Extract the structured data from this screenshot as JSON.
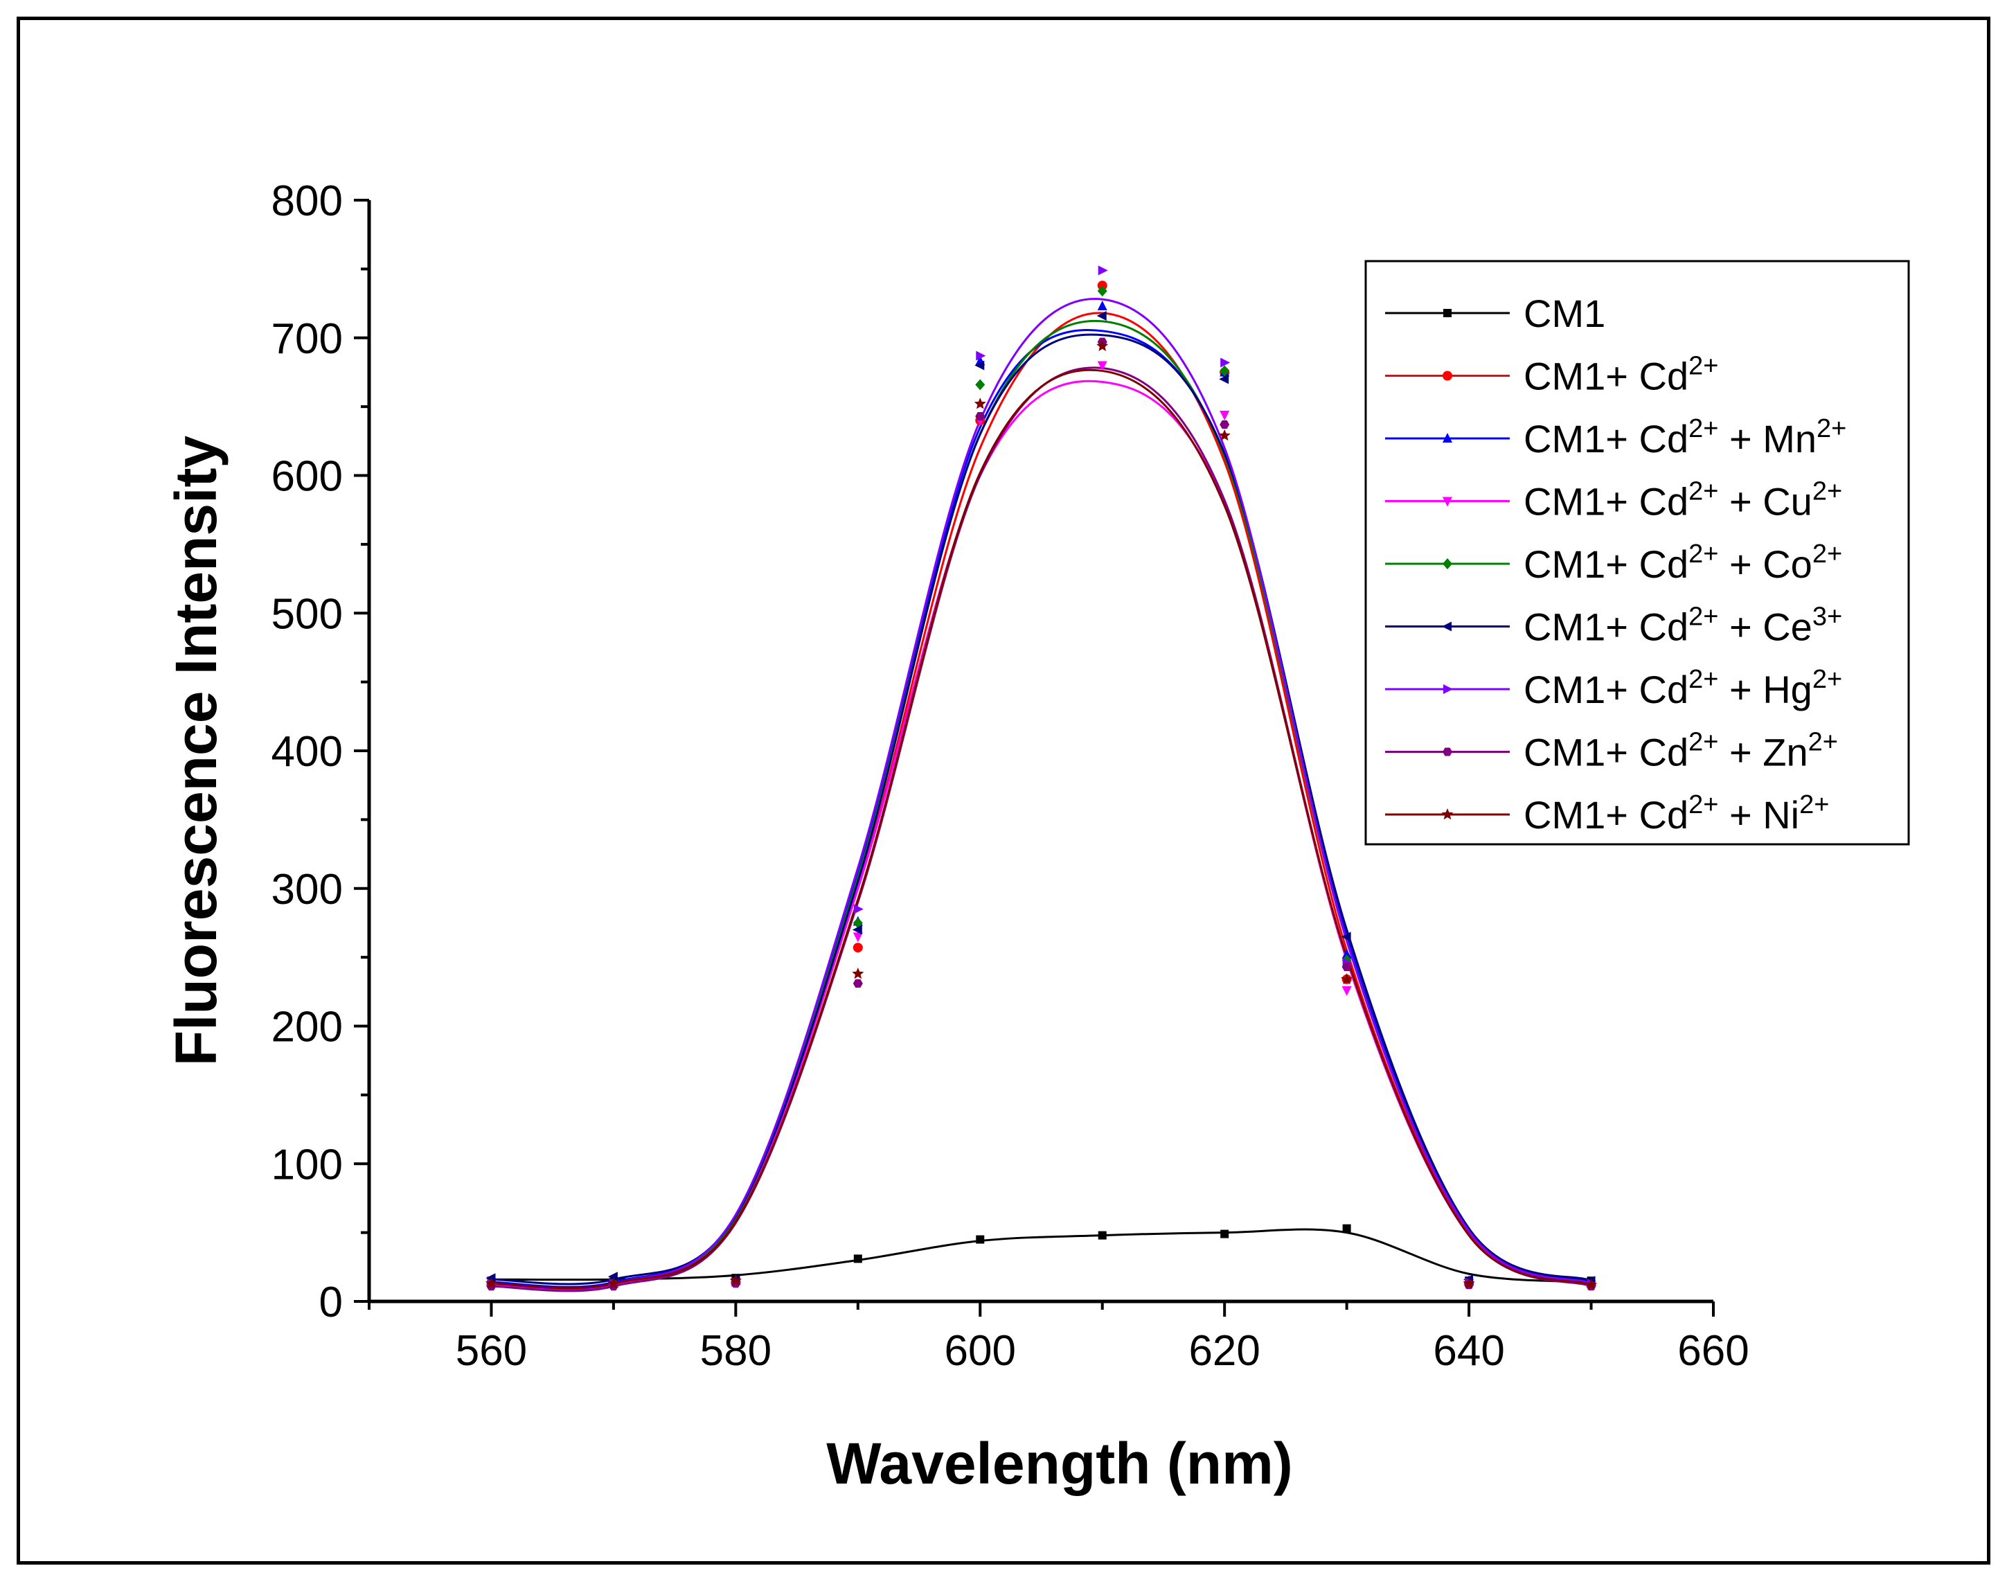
{
  "chart_data": {
    "type": "line",
    "title": "",
    "xlabel": "Wavelength (nm)",
    "ylabel": "Fluorescence Intensity",
    "xlim": [
      550,
      660
    ],
    "ylim": [
      0,
      800
    ],
    "xticks": [
      "560",
      "580",
      "600",
      "620",
      "640",
      "660"
    ],
    "yticks": [
      "0",
      "100",
      "200",
      "300",
      "400",
      "500",
      "600",
      "700",
      "800"
    ],
    "legend_position": "top-right",
    "x": [
      560,
      570,
      580,
      590,
      600,
      610,
      620,
      630,
      640,
      650
    ],
    "series": [
      {
        "name": "CM1",
        "base": "CM1",
        "sup": "",
        "mid": "",
        "sup2": "",
        "color": "#000000",
        "marker": "square",
        "values": [
          15,
          14,
          17,
          31,
          45,
          48,
          49,
          53,
          15,
          15
        ],
        "curve": [
          16,
          16,
          19,
          30,
          44,
          48,
          50,
          50,
          20,
          14
        ]
      },
      {
        "name": "CM1+ Cd2+",
        "base": "CM1+ Cd",
        "sup": "2+",
        "mid": "",
        "sup2": "",
        "color": "#ff0000",
        "marker": "circle",
        "values": [
          12,
          12,
          14,
          257,
          640,
          738,
          675,
          234,
          13,
          12
        ],
        "curve": [
          13,
          13,
          60,
          300,
          620,
          718,
          610,
          255,
          50,
          13
        ]
      },
      {
        "name": "CM1+ Cd2+ + Mn2+",
        "base": "CM1+ Cd",
        "sup": "2+",
        "mid": " + Mn",
        "sup2": "2+",
        "color": "#0000ff",
        "marker": "triangle-up",
        "values": [
          14,
          13,
          15,
          276,
          683,
          723,
          675,
          252,
          15,
          14
        ],
        "curve": [
          14,
          14,
          62,
          310,
          635,
          705,
          615,
          265,
          52,
          14
        ]
      },
      {
        "name": "CM1+ Cd2+ + Cu2+",
        "base": "CM1+ Cd",
        "sup": "2+",
        "mid": " + Cu",
        "sup2": "2+",
        "color": "#ff00ff",
        "marker": "triangle-down",
        "values": [
          12,
          13,
          14,
          265,
          640,
          680,
          644,
          226,
          13,
          12
        ],
        "curve": [
          12,
          12,
          58,
          300,
          600,
          668,
          580,
          248,
          48,
          12
        ]
      },
      {
        "name": "CM1+ Cd2+ + Co2+",
        "base": "CM1+ Cd",
        "sup": "2+",
        "mid": " + Co",
        "sup2": "2+",
        "color": "#008000",
        "marker": "diamond",
        "values": [
          13,
          13,
          15,
          275,
          666,
          734,
          676,
          248,
          14,
          13
        ],
        "curve": [
          13,
          13,
          61,
          308,
          630,
          712,
          614,
          262,
          51,
          13
        ]
      },
      {
        "name": "CM1+ Cd2+ + Ce3+",
        "base": "CM1+ Cd",
        "sup": "2+",
        "mid": " + Ce",
        "sup2": "3+",
        "color": "#000080",
        "marker": "triangle-left",
        "values": [
          17,
          18,
          16,
          270,
          680,
          716,
          670,
          265,
          16,
          15
        ],
        "curve": [
          16,
          16,
          62,
          305,
          630,
          702,
          616,
          270,
          53,
          15
        ]
      },
      {
        "name": "CM1+ Cd2+ + Hg2+",
        "base": "CM1+ Cd",
        "sup": "2+",
        "mid": " + Hg",
        "sup2": "2+",
        "color": "#8000ff",
        "marker": "triangle-right",
        "values": [
          13,
          13,
          14,
          285,
          687,
          749,
          682,
          246,
          14,
          13
        ],
        "curve": [
          13,
          13,
          63,
          315,
          640,
          728,
          620,
          262,
          51,
          13
        ]
      },
      {
        "name": "CM1+ Cd2+ + Zn2+",
        "base": "CM1+ Cd",
        "sup": "2+",
        "mid": " + Zn",
        "sup2": "2+",
        "color": "#800080",
        "marker": "hexagon",
        "values": [
          11,
          11,
          13,
          231,
          643,
          697,
          637,
          243,
          12,
          11
        ],
        "curve": [
          11,
          11,
          57,
          290,
          600,
          678,
          582,
          250,
          48,
          11
        ]
      },
      {
        "name": "CM1+ Cd2+ + Ni2+",
        "base": "CM1+ Cd",
        "sup": "2+",
        "mid": " + Ni",
        "sup2": "2+",
        "color": "#800000",
        "marker": "star",
        "values": [
          13,
          13,
          15,
          238,
          652,
          694,
          629,
          234,
          13,
          12
        ],
        "curve": [
          13,
          13,
          58,
          292,
          602,
          676,
          578,
          250,
          48,
          12
        ]
      }
    ]
  }
}
